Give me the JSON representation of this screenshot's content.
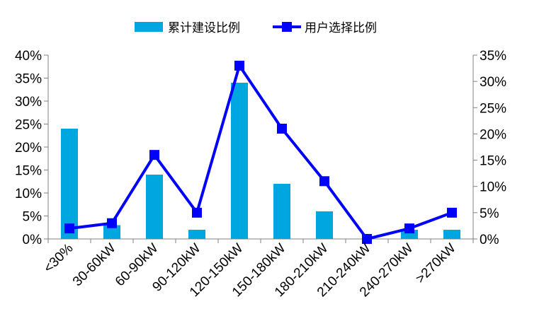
{
  "chart_data": {
    "type": "bar",
    "categories": [
      "<30%",
      "30-60kW",
      "60-90kW",
      "90-120kW",
      "120-150kW",
      "150-180kW",
      "180-210kW",
      "210-240kW",
      "240-270kW",
      ">270kW"
    ],
    "series": [
      {
        "name": "累计建设比例",
        "type": "bar",
        "axis": "left",
        "color": "#00a6e0",
        "values": [
          24,
          3,
          14,
          2,
          34,
          12,
          6,
          0,
          2,
          2
        ]
      },
      {
        "name": "用户选择比例",
        "type": "line",
        "axis": "right",
        "color": "#0000ff",
        "marker": "square",
        "values": [
          2,
          3,
          16,
          5,
          33,
          21,
          11,
          0,
          2,
          5
        ]
      }
    ],
    "y_left": {
      "min": 0,
      "max": 40,
      "step": 5,
      "unit": "%"
    },
    "y_right": {
      "min": 0,
      "max": 35,
      "step": 5,
      "unit": "%"
    },
    "legend_placement": "top-center",
    "grid": false
  }
}
